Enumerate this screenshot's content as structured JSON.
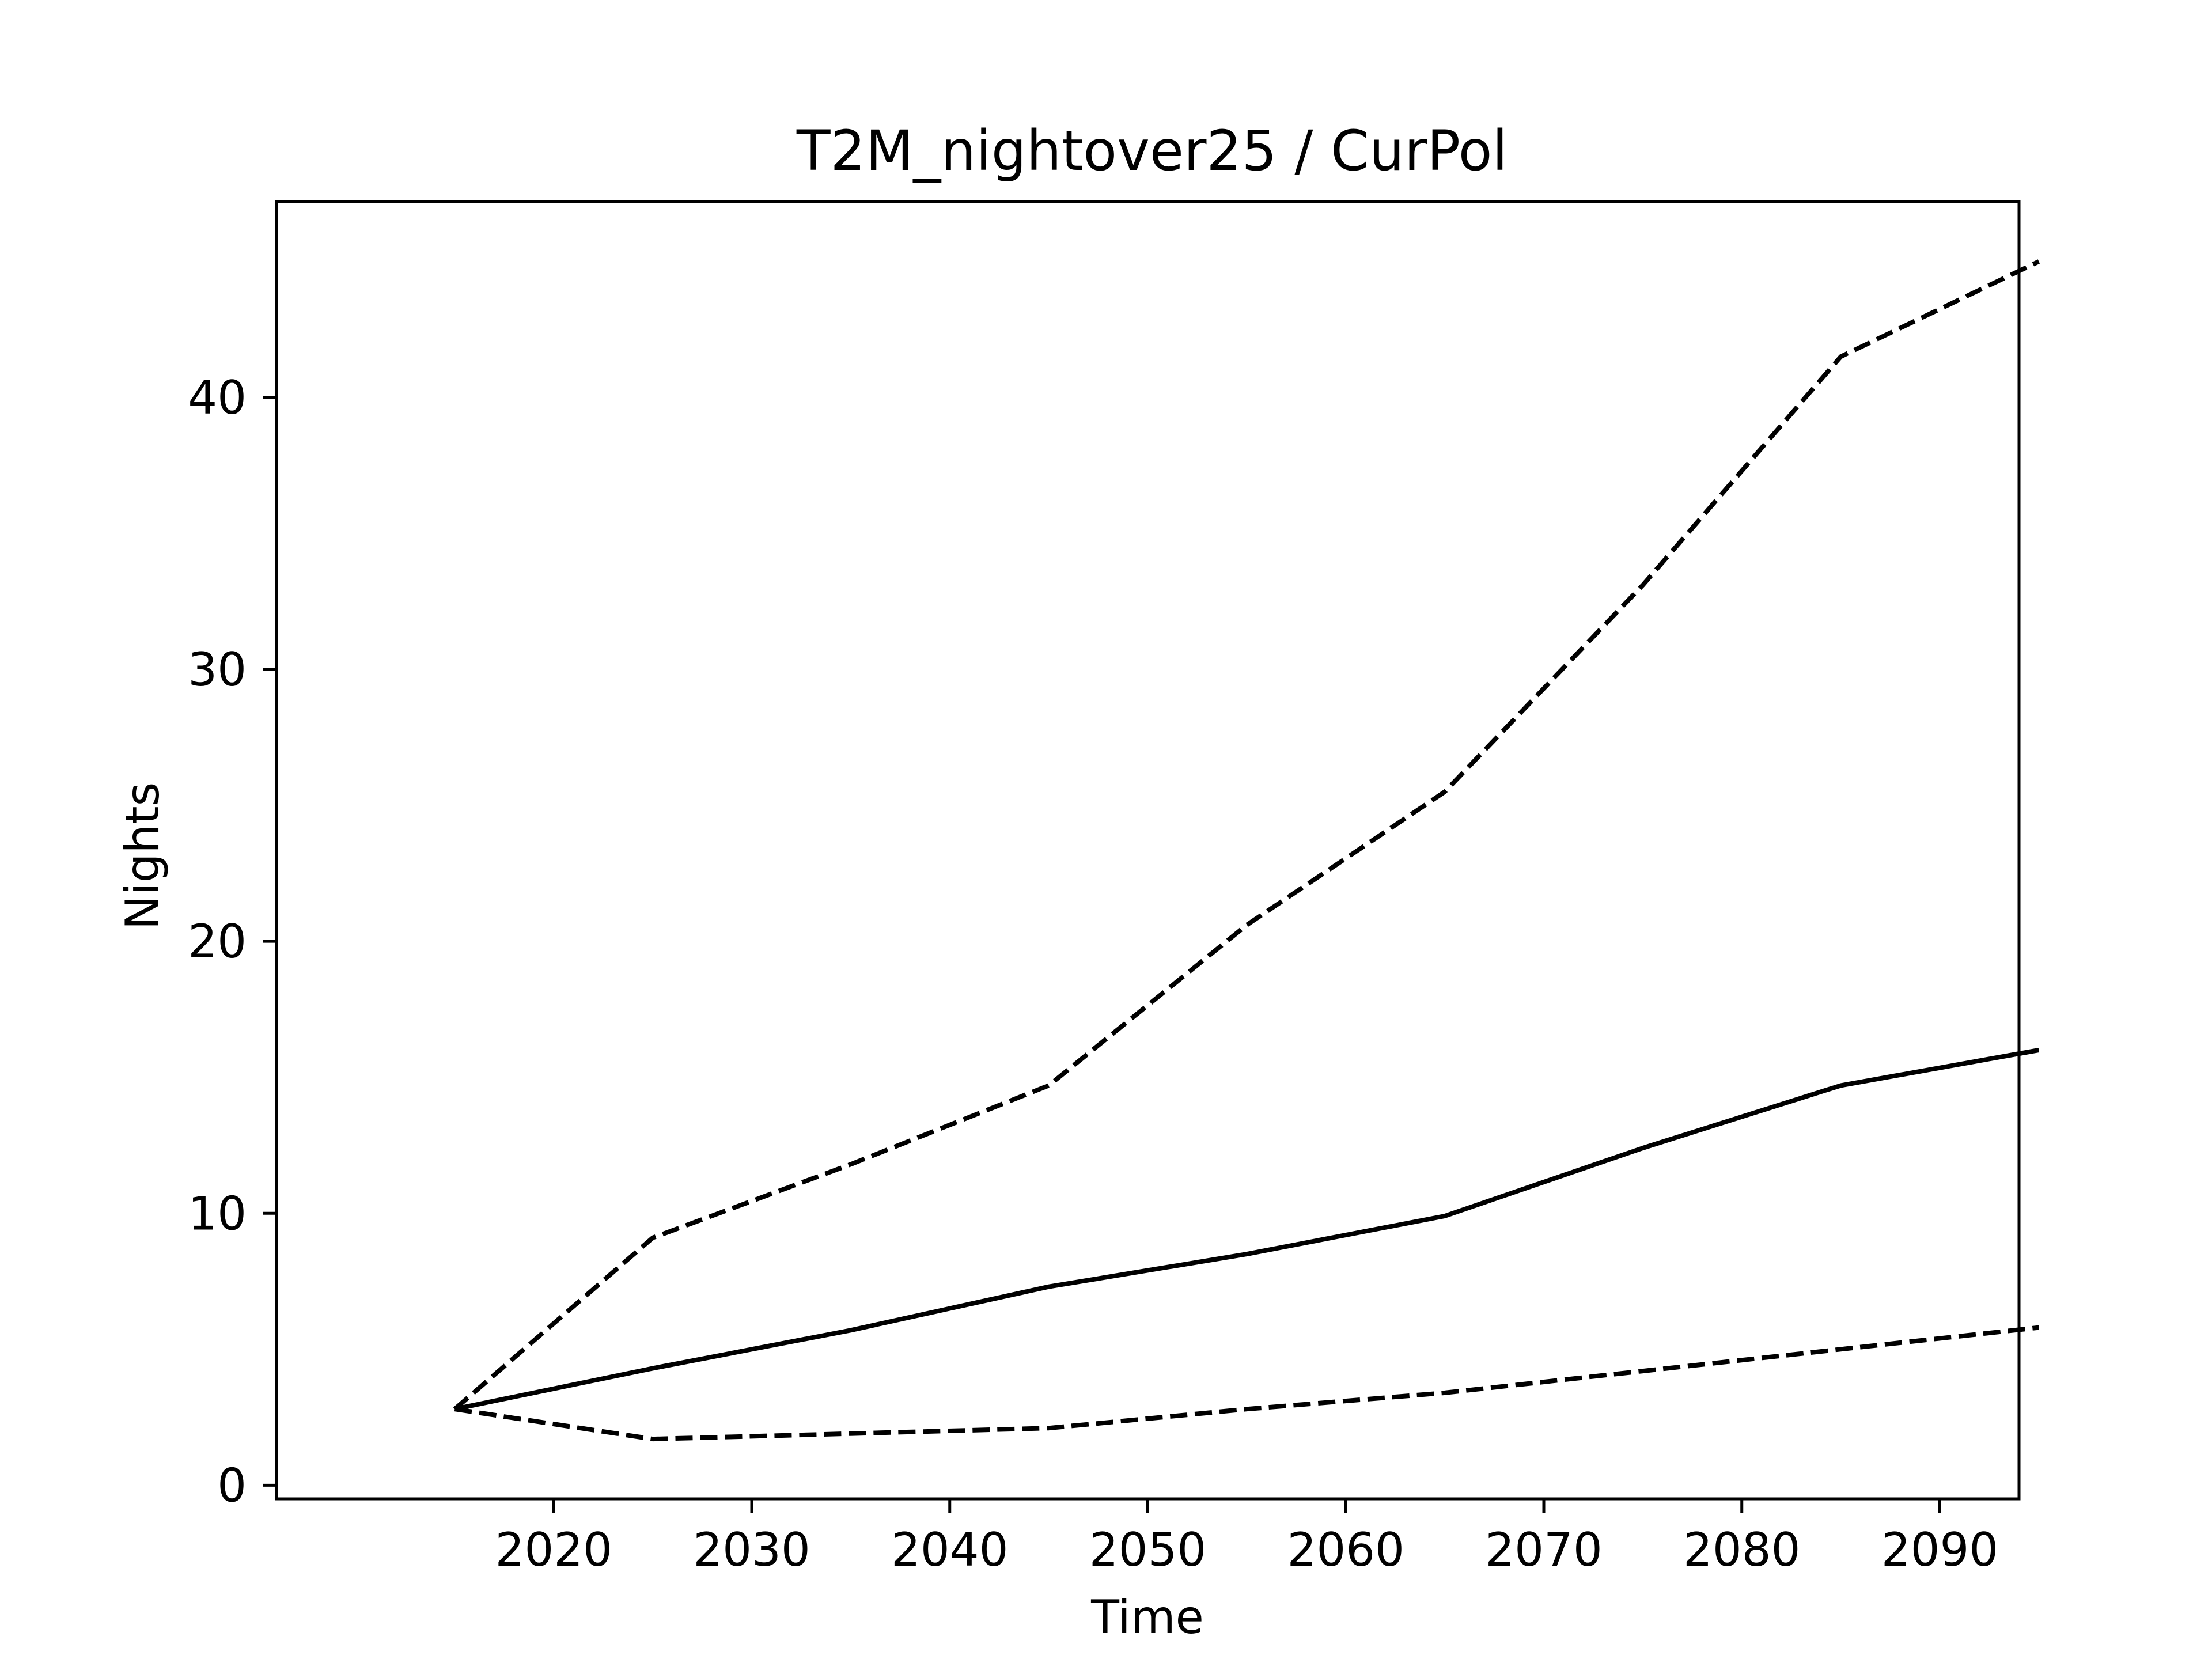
{
  "chart_data": {
    "type": "line",
    "title": "T2M_nightover25 / CurPol",
    "xlabel": "Time",
    "ylabel": "Nights",
    "x": [
      2015,
      2025,
      2035,
      2045,
      2055,
      2065,
      2075,
      2085,
      2095
    ],
    "xlim": [
      2006,
      2094
    ],
    "ylim": [
      -0.5,
      47.2
    ],
    "xticks": [
      2020,
      2030,
      2040,
      2050,
      2060,
      2070,
      2080,
      2090
    ],
    "yticks": [
      0,
      10,
      20,
      30,
      40
    ],
    "grid": false,
    "series": [
      {
        "values": [
          2.8,
          4.3,
          5.7,
          7.3,
          8.5,
          9.9,
          12.4,
          14.7,
          16.0
        ],
        "style": "solid",
        "color": "#000000"
      },
      {
        "values": [
          2.8,
          9.1,
          11.8,
          14.7,
          20.6,
          25.5,
          33.1,
          41.5,
          45.0
        ],
        "style": "dashed",
        "color": "#000000"
      },
      {
        "values": [
          2.8,
          1.7,
          1.9,
          2.1,
          2.8,
          3.4,
          4.2,
          5.0,
          5.8
        ],
        "style": "dashed",
        "color": "#000000"
      }
    ]
  }
}
